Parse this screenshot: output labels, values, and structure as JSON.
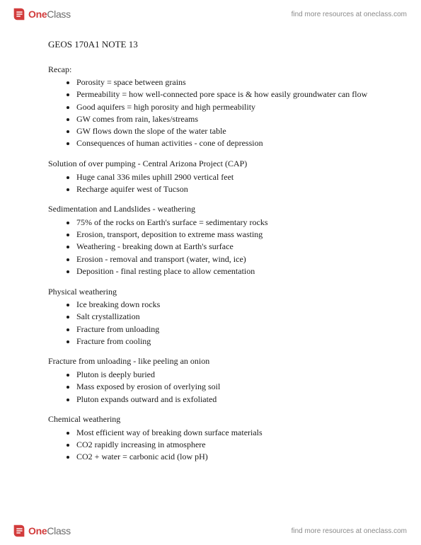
{
  "brand": {
    "name_one": "One",
    "name_class": "Class",
    "tagline": "find more resources at oneclass.com",
    "logo_color_red": "#d23c3c",
    "logo_color_gray": "#6b6b6b"
  },
  "doc": {
    "title": "GEOS 170A1 NOTE 13",
    "sections": [
      {
        "label": "Recap:",
        "items": [
          "Porosity = space between grains",
          "Permeability = how well-connected pore space is & how easily groundwater can flow",
          "Good aquifers = high porosity and high permeability",
          "GW comes from rain, lakes/streams",
          "GW flows down the slope of the water table",
          "Consequences of human activities - cone of depression"
        ]
      },
      {
        "label": "Solution of over pumping - Central Arizona Project (CAP)",
        "items": [
          "Huge canal 336 miles uphill 2900 vertical feet",
          "Recharge aquifer west of Tucson"
        ]
      },
      {
        "label": "Sedimentation and Landslides - weathering",
        "items": [
          "75% of the rocks on Earth's surface = sedimentary rocks",
          "Erosion, transport, deposition to extreme mass wasting",
          "Weathering - breaking down at Earth's surface",
          "Erosion - removal and transport (water, wind, ice)",
          "Deposition - final resting place to allow cementation"
        ]
      },
      {
        "label": "Physical weathering",
        "items": [
          "Ice breaking down rocks",
          "Salt crystallization",
          "Fracture from unloading",
          "Fracture from cooling"
        ]
      },
      {
        "label": "Fracture from unloading - like peeling an onion",
        "items": [
          "Pluton is deeply buried",
          "Mass exposed by erosion of overlying soil",
          "Pluton expands outward and is exfoliated"
        ]
      },
      {
        "label": "Chemical weathering",
        "items": [
          "Most efficient way of breaking down surface materials",
          "CO2 rapidly increasing in atmosphere",
          "CO2 + water = carbonic acid (low pH)"
        ]
      }
    ]
  }
}
